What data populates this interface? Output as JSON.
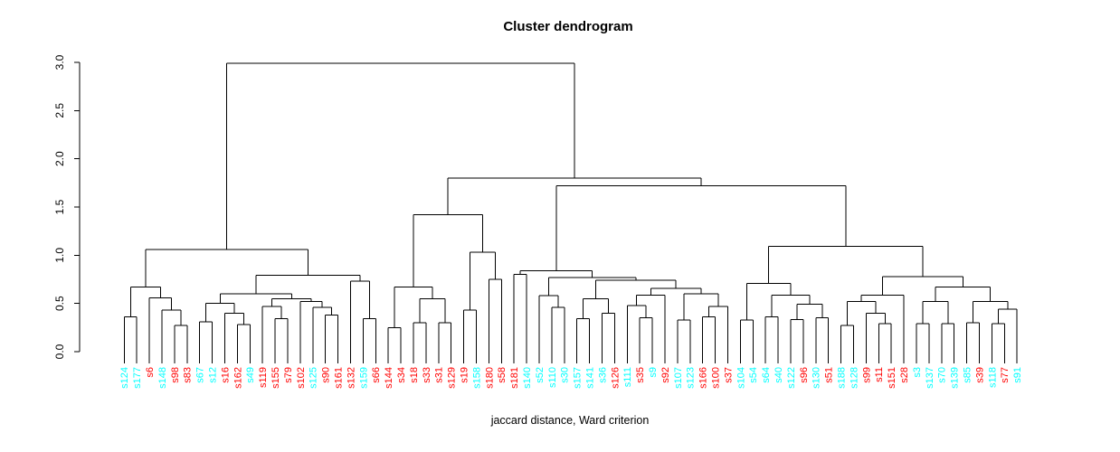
{
  "palette": {
    "red": "#FF0000",
    "cyan": "#00FFFF",
    "line": "#000000",
    "background": "#FFFFFF"
  },
  "chart_data": {
    "type": "dendrogram",
    "title": "Cluster dendrogram",
    "xlabel": "jaccard distance, Ward criterion",
    "ylabel": "",
    "ylim": [
      0,
      3
    ],
    "yticks": [
      "0.0",
      "0.5",
      "1.0",
      "1.5",
      "2.0",
      "2.5",
      "3.0"
    ],
    "grid": "off",
    "legend": "none",
    "root_height": 2.99,
    "labels": [
      "s124",
      "s177",
      "s6",
      "s148",
      "s98",
      "s83",
      "s67",
      "s12",
      "s16",
      "s162",
      "s49",
      "s119",
      "s155",
      "s79",
      "s102",
      "s125",
      "s90",
      "s161",
      "s132",
      "s159",
      "s66",
      "s144",
      "s34",
      "s18",
      "s33",
      "s31",
      "s129",
      "s19",
      "s158",
      "s180",
      "s58",
      "s181",
      "s140",
      "s52",
      "s110",
      "s30",
      "s157",
      "s141",
      "s36",
      "s126",
      "s111",
      "s35",
      "s9",
      "s92",
      "s107",
      "s123",
      "s166",
      "s100",
      "s37",
      "s104",
      "s54",
      "s64",
      "s40",
      "s122",
      "s96",
      "s130",
      "s51",
      "s188",
      "s128",
      "s99",
      "s11",
      "s151",
      "s28",
      "s3",
      "s137",
      "s70",
      "s139",
      "s85",
      "s39",
      "s118",
      "s77",
      "s91"
    ],
    "label_colors": [
      "cyan",
      "cyan",
      "red",
      "cyan",
      "red",
      "red",
      "cyan",
      "cyan",
      "red",
      "red",
      "cyan",
      "red",
      "red",
      "red",
      "red",
      "cyan",
      "red",
      "red",
      "red",
      "cyan",
      "red",
      "red",
      "red",
      "red",
      "red",
      "red",
      "red",
      "red",
      "cyan",
      "red",
      "red",
      "red",
      "cyan",
      "cyan",
      "cyan",
      "cyan",
      "cyan",
      "cyan",
      "cyan",
      "red",
      "cyan",
      "red",
      "cyan",
      "red",
      "cyan",
      "cyan",
      "red",
      "red",
      "red",
      "cyan",
      "cyan",
      "cyan",
      "cyan",
      "cyan",
      "red",
      "cyan",
      "red",
      "cyan",
      "cyan",
      "red",
      "red",
      "red",
      "red",
      "cyan",
      "cyan",
      "cyan",
      "cyan",
      "cyan",
      "red",
      "cyan",
      "red",
      "cyan"
    ],
    "tree": [
      2.99,
      [
        1.06,
        [
          0.67,
          [
            0.36,
            "s124",
            "s177"
          ],
          [
            0.56,
            "s6",
            [
              0.43,
              "s148",
              [
                0.27,
                "s98",
                "s83"
              ]
            ]
          ]
        ],
        [
          0.79,
          [
            0.6,
            [
              0.5,
              [
                0.31,
                "s67",
                "s12"
              ],
              [
                0.4,
                "s16",
                [
                  0.28,
                  "s162",
                  "s49"
                ]
              ]
            ],
            [
              0.55,
              [
                0.47,
                "s119",
                [
                  0.34,
                  "s155",
                  "s79"
                ]
              ],
              [
                0.52,
                "s102",
                [
                  0.46,
                  "s125",
                  [
                    0.38,
                    "s90",
                    "s161"
                  ]
                ]
              ]
            ]
          ],
          [
            0.73,
            "s132",
            [
              0.34,
              "s159",
              "s66"
            ]
          ]
        ]
      ],
      [
        1.8,
        [
          1.42,
          [
            0.67,
            [
              0.25,
              "s144",
              "s34"
            ],
            [
              0.55,
              [
                0.3,
                "s18",
                "s33"
              ],
              [
                0.3,
                "s31",
                "s129"
              ]
            ]
          ],
          [
            1.03,
            [
              0.43,
              "s19",
              "s158"
            ],
            [
              0.75,
              "s180",
              "s58"
            ]
          ]
        ],
        [
          1.72,
          [
            0.84,
            [
              0.8,
              "s181",
              "s140"
            ],
            [
              0.77,
              [
                0.58,
                "s52",
                [
                  0.46,
                  "s110",
                  "s30"
                ]
              ],
              [
                0.74,
                [
                  0.55,
                  [
                    0.34,
                    "s157",
                    "s141"
                  ],
                  [
                    0.4,
                    "s36",
                    "s126"
                  ]
                ],
                [
                  0.655,
                  [
                    0.585,
                    [
                      0.48,
                      "s111",
                      [
                        0.35,
                        "s35",
                        "s9"
                      ]
                    ],
                    "s92"
                  ],
                  [
                    0.6,
                    [
                      0.33,
                      "s107",
                      "s123"
                    ],
                    [
                      0.47,
                      [
                        0.36,
                        "s166",
                        "s100"
                      ],
                      "s37"
                    ]
                  ]
                ]
              ]
            ]
          ],
          [
            1.09,
            [
              0.71,
              [
                0.33,
                "s104",
                "s54"
              ],
              [
                0.585,
                [
                  0.36,
                  "s64",
                  "s40"
                ],
                [
                  0.49,
                  [
                    0.335,
                    "s122",
                    "s96"
                  ],
                  [
                    0.35,
                    "s130",
                    "s51"
                  ]
                ]
              ]
            ],
            [
              0.78,
              [
                0.585,
                [
                  0.52,
                  [
                    0.27,
                    "s188",
                    "s128"
                  ],
                  [
                    0.4,
                    "s99",
                    [
                      0.29,
                      "s11",
                      "s151"
                    ]
                  ]
                ],
                "s28"
              ],
              [
                0.67,
                [
                  0.52,
                  [
                    0.29,
                    "s3",
                    "s137"
                  ],
                  [
                    0.29,
                    "s70",
                    "s139"
                  ]
                ],
                [
                  0.52,
                  [
                    0.3,
                    "s85",
                    "s39"
                  ],
                  [
                    0.44,
                    [
                      0.29,
                      "s118",
                      "s77"
                    ],
                    "s91"
                  ]
                ]
              ]
            ]
          ]
        ]
      ]
    ]
  }
}
